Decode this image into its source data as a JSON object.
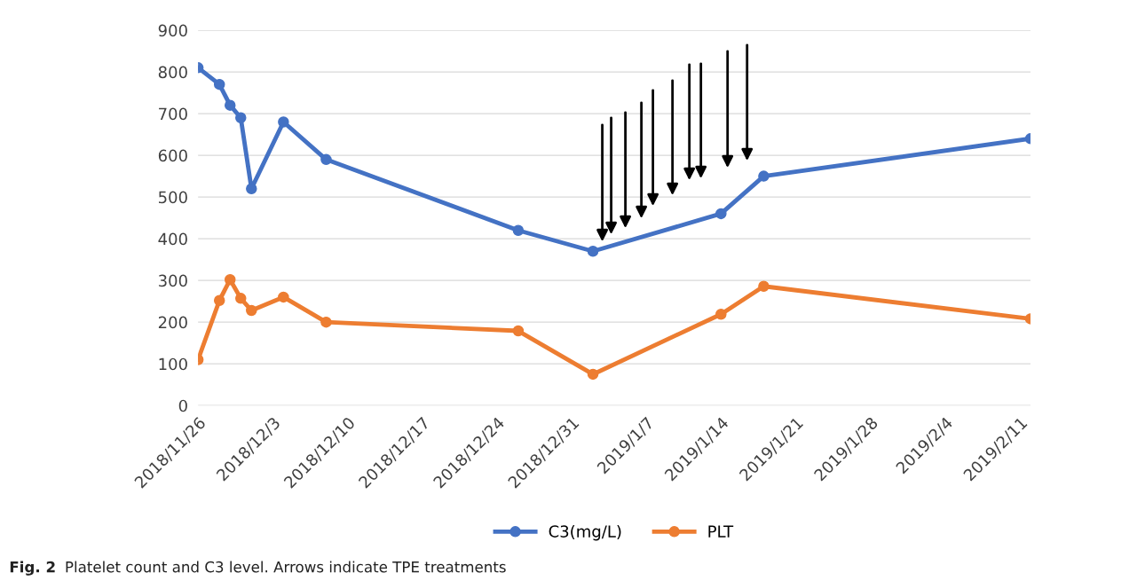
{
  "chart_data": {
    "type": "line",
    "x": [
      "2018-11-26",
      "2018-11-28",
      "2018-11-29",
      "2018-11-30",
      "2018-12-01",
      "2018-12-04",
      "2018-12-08",
      "2018-12-26",
      "2019-01-02",
      "2019-01-14",
      "2019-01-18",
      "2019-02-12"
    ],
    "series": [
      {
        "name": "C3(mg/L)",
        "color": "#4472c4",
        "values": [
          810,
          770,
          720,
          690,
          520,
          680,
          590,
          420,
          370,
          460,
          550,
          640
        ]
      },
      {
        "name": "PLT",
        "color": "#ed7d31",
        "values": [
          110,
          252,
          302,
          257,
          228,
          260,
          200,
          179,
          75,
          219,
          286,
          208
        ]
      }
    ],
    "xlim": [
      "2018-11-26",
      "2019-02-12"
    ],
    "xticks": [
      {
        "value": "2018-11-26",
        "label": "2018/11/26"
      },
      {
        "value": "2018-12-03",
        "label": "2018/12/3"
      },
      {
        "value": "2018-12-10",
        "label": "2018/12/10"
      },
      {
        "value": "2018-12-17",
        "label": "2018/12/17"
      },
      {
        "value": "2018-12-24",
        "label": "2018/12/24"
      },
      {
        "value": "2018-12-31",
        "label": "2018/12/31"
      },
      {
        "value": "2019-01-07",
        "label": "2019/1/7"
      },
      {
        "value": "2019-01-14",
        "label": "2019/1/14"
      },
      {
        "value": "2019-01-21",
        "label": "2019/1/21"
      },
      {
        "value": "2019-01-28",
        "label": "2019/1/28"
      },
      {
        "value": "2019-02-04",
        "label": "2019/2/4"
      },
      {
        "value": "2019-02-11",
        "label": "2019/2/11"
      }
    ],
    "ylim": [
      0,
      900
    ],
    "yticks": [
      0,
      100,
      200,
      300,
      400,
      500,
      600,
      700,
      800,
      900
    ],
    "grid": "y",
    "legend": "bottom",
    "marker": "circle",
    "line_style": "solid",
    "annotations": [
      "Fig. 2",
      "Platelet count and C3 level. Arrows indicate TPE treatments"
    ]
  }
}
